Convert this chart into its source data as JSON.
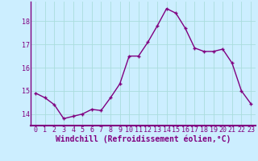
{
  "x": [
    0,
    1,
    2,
    3,
    4,
    5,
    6,
    7,
    8,
    9,
    10,
    11,
    12,
    13,
    14,
    15,
    16,
    17,
    18,
    19,
    20,
    21,
    22,
    23
  ],
  "y": [
    14.9,
    14.7,
    14.4,
    13.8,
    13.9,
    14.0,
    14.2,
    14.15,
    14.7,
    15.3,
    16.5,
    16.5,
    17.1,
    17.8,
    18.55,
    18.35,
    17.7,
    16.85,
    16.7,
    16.7,
    16.8,
    16.2,
    15.0,
    14.45
  ],
  "line_color": "#800080",
  "marker": "+",
  "markersize": 3.5,
  "linewidth": 1.0,
  "bg_color": "#cceeff",
  "grid_color": "#aadddd",
  "xlabel": "Windchill (Refroidissement éolien,°C)",
  "xlabel_fontsize": 7.0,
  "yticks": [
    14,
    15,
    16,
    17,
    18
  ],
  "xticks": [
    0,
    1,
    2,
    3,
    4,
    5,
    6,
    7,
    8,
    9,
    10,
    11,
    12,
    13,
    14,
    15,
    16,
    17,
    18,
    19,
    20,
    21,
    22,
    23
  ],
  "ylim": [
    13.5,
    18.85
  ],
  "xlim": [
    -0.5,
    23.5
  ],
  "tick_fontsize": 6.0,
  "tick_color": "#800080",
  "spine_color": "#800080"
}
